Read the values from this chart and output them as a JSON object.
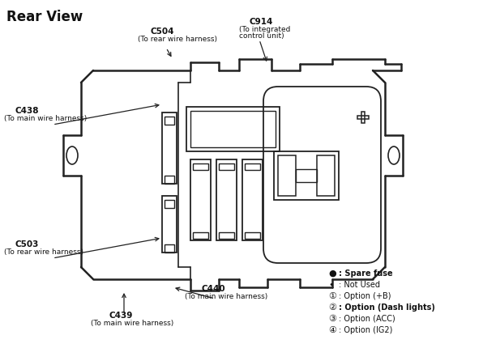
{
  "title": "Rear View",
  "bg_color": "#ffffff",
  "line_color": "#222222",
  "text_color": "#111111",
  "legend_items": [
    {
      "symbol": "●",
      "text": ": Spare fuse",
      "bold": true
    },
    {
      "symbol": "•",
      "text": ": Not Used",
      "bold": false
    },
    {
      "symbol": "①",
      "text": ": Option (+B)",
      "bold": false
    },
    {
      "symbol": "②",
      "text": ": Option (Dash lights)",
      "bold": true
    },
    {
      "symbol": "③",
      "text": ": Option (ACC)",
      "bold": false
    },
    {
      "symbol": "④",
      "text": ": Option (IG2)",
      "bold": false
    }
  ]
}
